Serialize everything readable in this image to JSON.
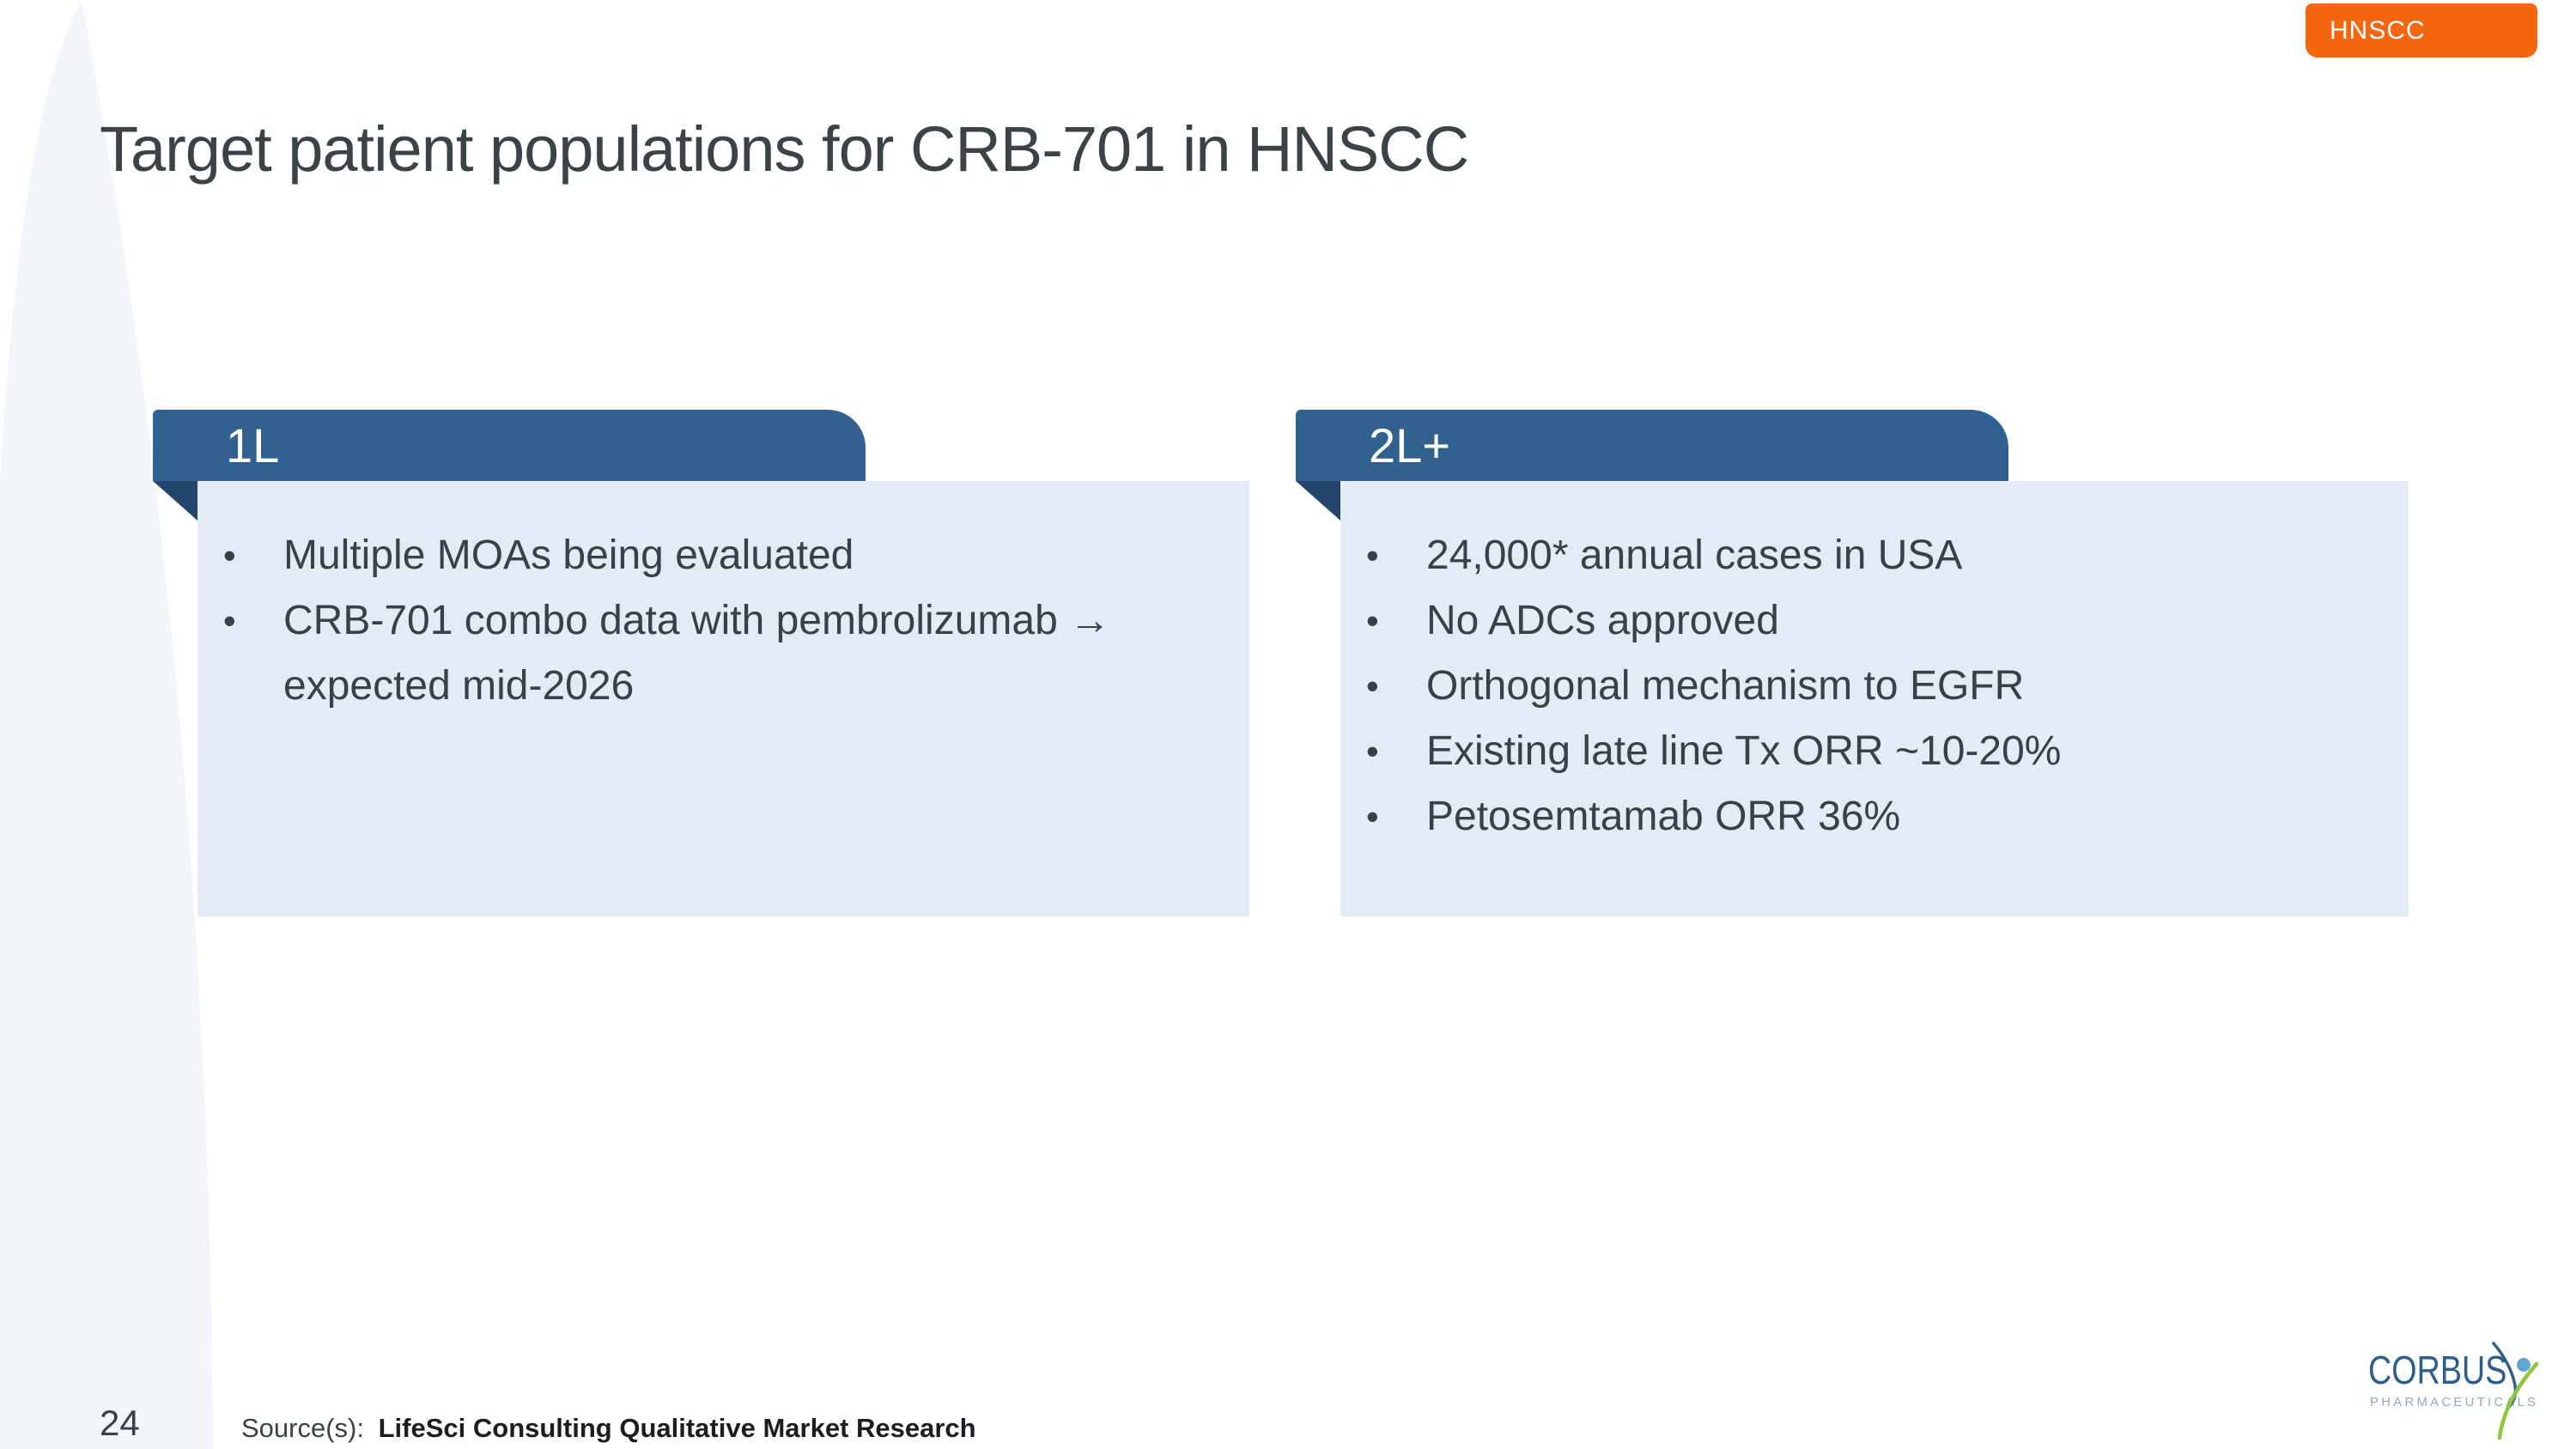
{
  "tag": {
    "label": "HNSCC"
  },
  "title": "Target patient populations for CRB-701 in HNSCC",
  "bullet_marker": "•",
  "boxes": [
    {
      "header": "1L",
      "bullets": [
        "Multiple MOAs being evaluated",
        "CRB-701 combo data with pembrolizumab → expected mid-2026"
      ]
    },
    {
      "header": "2L+",
      "bullets": [
        "24,000* annual cases in USA",
        "No ADCs approved",
        "Orthogonal mechanism to EGFR",
        "Existing late line Tx ORR ~10-20%",
        "Petosemtamab ORR 36%"
      ]
    }
  ],
  "footer": {
    "page_number": "24",
    "source_label": "Source(s):",
    "source_text": "LifeSci Consulting Qualitative Market Research"
  },
  "logo": {
    "name": "CORBUS",
    "subtitle": "PHARMACEUTICALS"
  },
  "colors": {
    "tab_blue": "#31618F",
    "fold_blue": "#23476C",
    "box_bg": "#E5EBF4",
    "orange": "#F4670E",
    "text_dark": "#3A4045",
    "title_color": "#3C4347",
    "source_bold": "#1B1D20",
    "logo_blue": "#2D5E8C",
    "logo_lightblue": "#5FA8D3",
    "logo_green": "#8DC63F",
    "logo_gray": "#93A9BF",
    "left_band": "#F2F6FB"
  }
}
